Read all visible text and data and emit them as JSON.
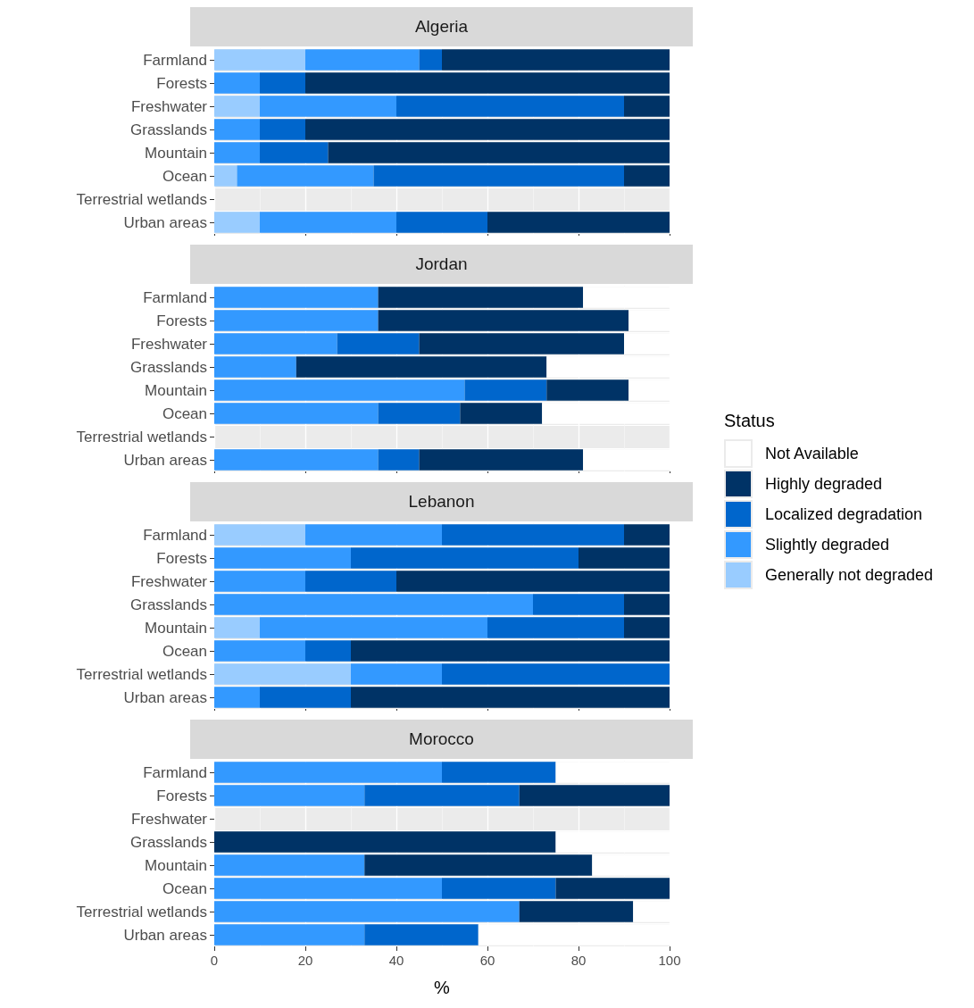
{
  "chart_data": [
    {
      "type": "bar",
      "title": "Algeria",
      "legend": "right",
      "orientation": "horizontal",
      "stacked": true,
      "categories": [
        "Farmland",
        "Forests",
        "Freshwater",
        "Grasslands",
        "Mountain",
        "Ocean",
        "Terrestrial wetlands",
        "Urban areas"
      ],
      "xlim": [
        0,
        100
      ],
      "xticks": [
        0,
        20,
        40,
        60,
        80,
        100
      ],
      "grid": true,
      "tick_labels": "y",
      "series": [
        {
          "name": "Generally not degraded",
          "color": "#99ccff",
          "values": [
            20,
            0,
            10,
            0,
            0,
            5,
            null,
            10
          ]
        },
        {
          "name": "Slightly degraded",
          "color": "#3399ff",
          "values": [
            25,
            10,
            30,
            10,
            10,
            30,
            null,
            30
          ]
        },
        {
          "name": "Localized degradation",
          "color": "#0066cc",
          "values": [
            5,
            10,
            50,
            10,
            15,
            55,
            null,
            20
          ]
        },
        {
          "name": "Highly degraded",
          "color": "#003366",
          "values": [
            50,
            80,
            10,
            80,
            75,
            10,
            null,
            40
          ]
        }
      ]
    },
    {
      "type": "bar",
      "title": "Jordan",
      "legend": "right",
      "orientation": "horizontal",
      "stacked": true,
      "categories": [
        "Farmland",
        "Forests",
        "Freshwater",
        "Grasslands",
        "Mountain",
        "Ocean",
        "Terrestrial wetlands",
        "Urban areas"
      ],
      "xlim": [
        0,
        100
      ],
      "xticks": [
        0,
        20,
        40,
        60,
        80,
        100
      ],
      "grid": true,
      "tick_labels": "y",
      "series": [
        {
          "name": "Slightly degraded",
          "color": "#3399ff",
          "values": [
            36,
            36,
            27,
            18,
            55,
            36,
            null,
            36
          ]
        },
        {
          "name": "Localized degradation",
          "color": "#0066cc",
          "values": [
            0,
            0,
            18,
            0,
            18,
            18,
            null,
            9
          ]
        },
        {
          "name": "Highly degraded",
          "color": "#003366",
          "values": [
            45,
            55,
            45,
            55,
            18,
            18,
            null,
            36
          ]
        },
        {
          "name": "Not Available",
          "color": "#ffffff",
          "values": [
            19,
            9,
            10,
            27,
            9,
            28,
            null,
            19
          ]
        }
      ]
    },
    {
      "type": "bar",
      "title": "Lebanon",
      "orientation": "horizontal",
      "stacked": true,
      "categories": [
        "Farmland",
        "Forests",
        "Freshwater",
        "Grasslands",
        "Mountain",
        "Ocean",
        "Terrestrial wetlands",
        "Urban areas"
      ],
      "xlim": [
        0,
        100
      ],
      "xticks": [
        0,
        20,
        40,
        60,
        80,
        100
      ],
      "grid": true,
      "tick_labels": "y",
      "legend": "right",
      "legend_title": "Status",
      "series": [
        {
          "name": "Generally not degraded",
          "color": "#99ccff",
          "values": [
            20,
            0,
            0,
            0,
            10,
            0,
            30,
            0
          ]
        },
        {
          "name": "Slightly degraded",
          "color": "#3399ff",
          "values": [
            30,
            30,
            20,
            70,
            50,
            20,
            20,
            10
          ]
        },
        {
          "name": "Localized degradation",
          "color": "#0066cc",
          "values": [
            40,
            50,
            20,
            20,
            30,
            10,
            50,
            20
          ]
        },
        {
          "name": "Highly degraded",
          "color": "#003366",
          "values": [
            10,
            20,
            60,
            10,
            10,
            70,
            0,
            70
          ]
        },
        {
          "name": "Not Available",
          "color": "#ffffff",
          "values": [
            0,
            0,
            0,
            0,
            0,
            0,
            0,
            0
          ]
        }
      ]
    },
    {
      "type": "bar",
      "title": "Morocco",
      "legend": "right",
      "orientation": "horizontal",
      "stacked": true,
      "categories": [
        "Farmland",
        "Forests",
        "Freshwater",
        "Grasslands",
        "Mountain",
        "Ocean",
        "Terrestrial wetlands",
        "Urban areas"
      ],
      "xlim": [
        0,
        100
      ],
      "xticks": [
        0,
        20,
        40,
        60,
        80,
        100
      ],
      "grid": true,
      "xlabel": "%",
      "series": [
        {
          "name": "Slightly degraded",
          "color": "#3399ff",
          "values": [
            50,
            33,
            null,
            0,
            33,
            50,
            67,
            33
          ]
        },
        {
          "name": "Localized degradation",
          "color": "#0066cc",
          "values": [
            25,
            34,
            null,
            0,
            0,
            25,
            0,
            25
          ]
        },
        {
          "name": "Highly degraded",
          "color": "#003366",
          "values": [
            0,
            33,
            null,
            75,
            50,
            25,
            25,
            0
          ]
        },
        {
          "name": "Not Available",
          "color": "#ffffff",
          "values": [
            25,
            0,
            null,
            25,
            17,
            0,
            8,
            42
          ]
        }
      ]
    }
  ]
}
